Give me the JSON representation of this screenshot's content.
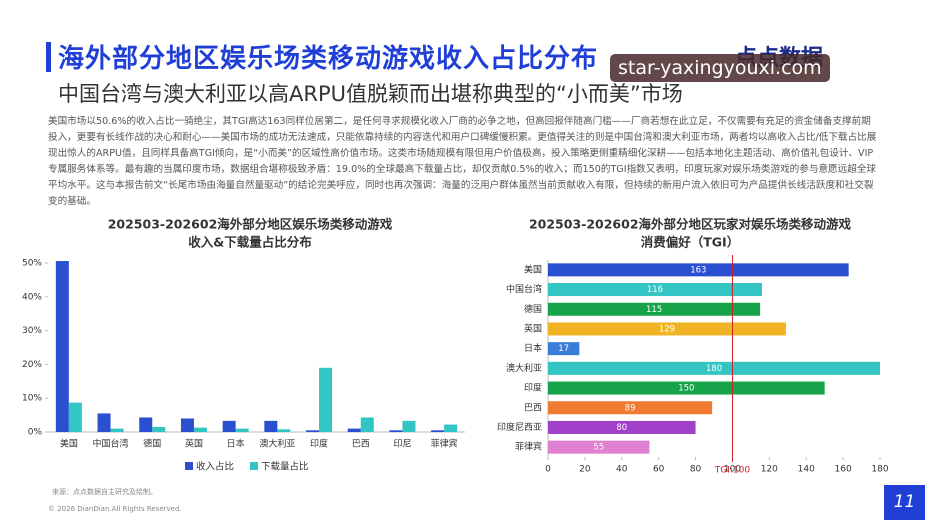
{
  "header": {
    "title": "海外部分地区娱乐场类移动游戏收入占比分布",
    "subtitle": "中国台湾与澳大利亚以高ARPU值脱颖而出堪称典型的“小而美”市场",
    "logo": "点点数据"
  },
  "watermark": "star-yaxingyouxi.com",
  "body": {
    "paragraph": "美国市场以50.6%的收入占比一骑绝尘，其TGI高达163同样位居第二，是任何寻求规模化收入厂商的必争之地，但高回报伴随高门槛——厂商若想在此立足，不仅需要有充足的资金储备支撑前期投入，更要有长线作战的决心和耐心——美国市场的成功无法速成，只能依靠持续的内容迭代和用户口碑缓慢积累。更值得关注的则是中国台湾和澳大利亚市场，两者均以高收入占比/低下载占比展现出惊人的ARPU值，且同样具备高TGI倾向，是“小而美”的区域性高价值市场。这类市场随规模有限但用户价值极高，投入策略更侧重精细化深耕——包括本地化主题活动、高价值礼包设计、VIP专属服务体系等。最有趣的当属印度市场，数据组合堪称极致矛盾：19.0%的全球最高下载量占比，却仅贡献0.5%的收入；而150的TGI指数又表明，印度玩家对娱乐场类游戏的参与意愿远超全球平均水平。这与本报告前文“长尾市场由海量自然量驱动”的结论完美呼应，同时也再次强调：海量的泛用户群体虽然当前贡献收入有限，但持续的新用户流入依旧可为产品提供长线活跃度和社交裂变的基础。"
  },
  "footer": {
    "source": "来源：点点数据自主研究及绘制。",
    "copyright": "© 2026 DianDian.All Rights Reserved.",
    "page": "11"
  },
  "chart_data": [
    {
      "type": "bar",
      "title": "202503-202602海外部分地区娱乐场类移动游戏",
      "subtitle": "收入&下载量占比分布",
      "categories": [
        "美国",
        "中国台湾",
        "德国",
        "英国",
        "日本",
        "澳大利亚",
        "印度",
        "巴西",
        "印尼",
        "菲律宾"
      ],
      "series": [
        {
          "name": "收入占比",
          "color": "#2a4fd0",
          "values": [
            50.6,
            5.5,
            4.3,
            4.0,
            3.3,
            3.3,
            0.5,
            1.0,
            0.5,
            0.5
          ]
        },
        {
          "name": "下载量占比",
          "color": "#33c4c4",
          "values": [
            8.7,
            1.0,
            1.5,
            1.3,
            1.0,
            0.8,
            19.0,
            4.3,
            3.3,
            2.2
          ]
        }
      ],
      "ylim": [
        0,
        51.5
      ],
      "yticks": [
        {
          "value": 0,
          "label": "0%"
        },
        {
          "value": 10,
          "label": "10%"
        },
        {
          "value": 20,
          "label": "20%"
        },
        {
          "value": 30,
          "label": "30%"
        },
        {
          "value": 40,
          "label": "40%"
        },
        {
          "value": 50,
          "label": "50%"
        }
      ],
      "legend": "bottom"
    },
    {
      "type": "barh",
      "title": "202503-202602海外部分地区玩家对娱乐场类移动游戏",
      "subtitle": "消费偏好（TGI）",
      "categories": [
        "美国",
        "中国台湾",
        "德国",
        "英国",
        "日本",
        "澳大利亚",
        "印度",
        "巴西",
        "印度尼西亚",
        "菲律宾"
      ],
      "values": [
        163,
        116,
        115,
        129,
        17,
        180,
        150,
        89,
        80,
        55
      ],
      "colors": [
        "#2a4fd0",
        "#33c4c4",
        "#17a34a",
        "#f0b323",
        "#3b7ed8",
        "#33c4c4",
        "#17a34a",
        "#f07a30",
        "#a040c8",
        "#e080d0"
      ],
      "xlim": [
        0,
        180
      ],
      "xticks": [
        0,
        20,
        40,
        60,
        80,
        100,
        120,
        140,
        160,
        180
      ],
      "reference": {
        "value": 100,
        "label": "TGI:100",
        "color": "#d02020"
      }
    }
  ]
}
